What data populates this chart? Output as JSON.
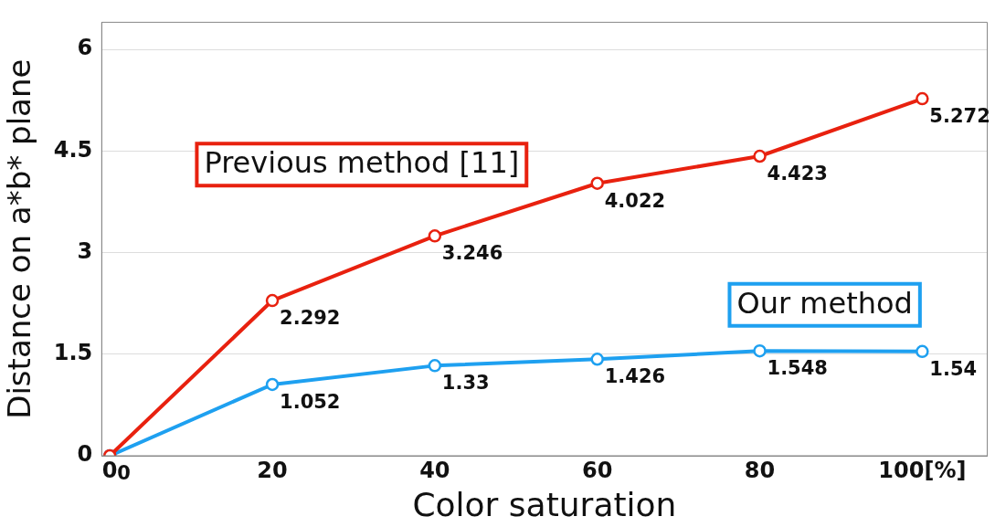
{
  "chart_data": {
    "type": "line",
    "xlabel": "Color saturation",
    "ylabel": "Distance on a*b* plane",
    "x": [
      0,
      20,
      40,
      60,
      80,
      100
    ],
    "series": [
      {
        "name": "Previous method [11]",
        "color": "#e8210f",
        "values": [
          0,
          2.292,
          3.246,
          4.022,
          4.423,
          5.272
        ],
        "value_labels": [
          "0",
          "2.292",
          "3.246",
          "4.022",
          "4.423",
          "5.272"
        ]
      },
      {
        "name": "Our method",
        "color": "#1ea0f0",
        "values": [
          0,
          1.052,
          1.33,
          1.426,
          1.548,
          1.54
        ],
        "value_labels": [
          null,
          "1.052",
          "1.33",
          "1.426",
          "1.548",
          "1.54"
        ]
      }
    ],
    "xlim": [
      -1,
      108
    ],
    "xticks": [
      0,
      20,
      40,
      60,
      80,
      {
        "value": 100,
        "label": "100[%]"
      }
    ],
    "ylim": [
      0,
      6.4
    ],
    "yticks": [
      0,
      1.5,
      3,
      4.5,
      6
    ],
    "grid": "y",
    "marker": "circle",
    "line_style": "solid"
  }
}
